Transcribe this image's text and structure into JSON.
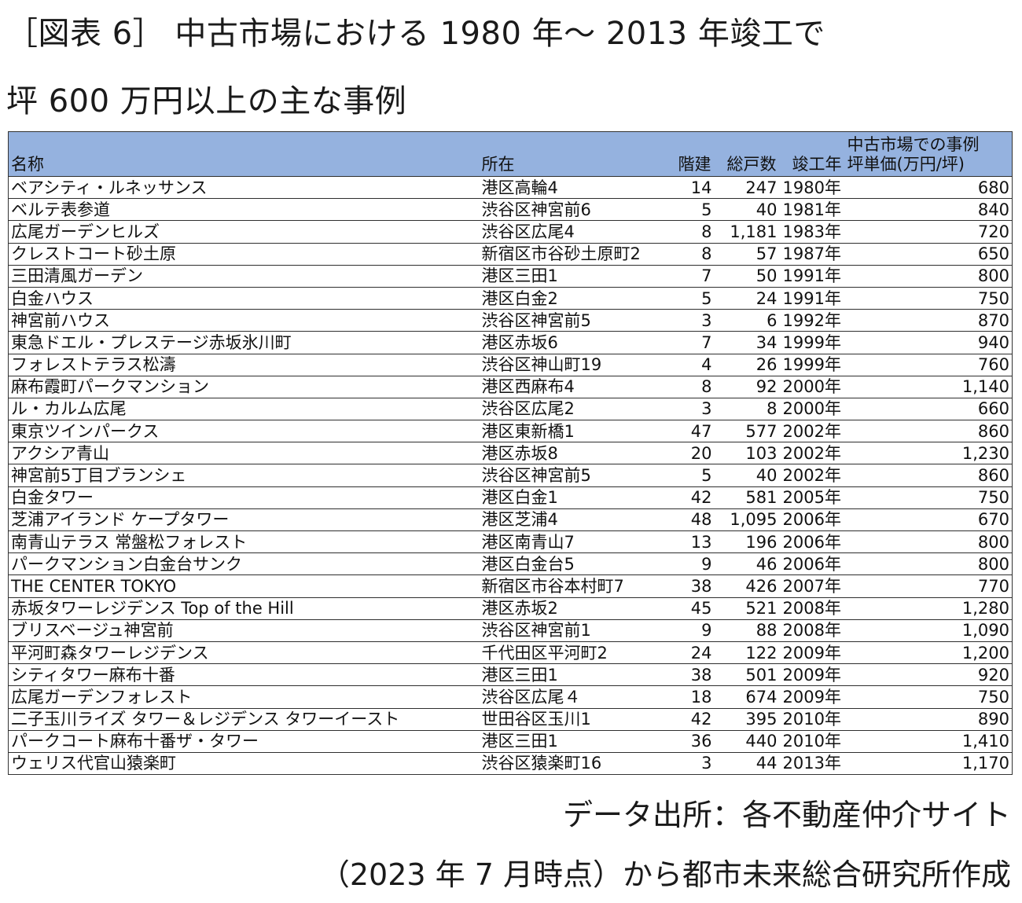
{
  "title_line1": "［図表 6］ 中古市場における 1980 年～ 2013 年竣工で",
  "title_line2": "坪 600 万円以上の主な事例",
  "source_line1": "データ出所：各不動産仲介サイト",
  "source_line2": "（2023 年 7 月時点）から都市未来総合研究所作成",
  "colors": {
    "header_bg": "#95b2df",
    "border": "#333333"
  },
  "chart_data": {
    "type": "table",
    "columns": {
      "name": "名称",
      "location": "所在",
      "floors": "階建",
      "units": "総戸数",
      "year": "竣工年",
      "price_line1": "中古市場での事例",
      "price_line2": "坪単価(万円/坪)"
    },
    "rows": [
      [
        "ベアシティ・ルネッサンス",
        "港区高輪4",
        "14",
        "247",
        "1980年",
        "680"
      ],
      [
        "ベルテ表参道",
        "渋谷区神宮前6",
        "5",
        "40",
        "1981年",
        "840"
      ],
      [
        "広尾ガーデンヒルズ",
        "渋谷区広尾4",
        "8",
        "1,181",
        "1983年",
        "720"
      ],
      [
        "クレストコート砂土原",
        "新宿区市谷砂土原町2",
        "8",
        "57",
        "1987年",
        "650"
      ],
      [
        "三田清風ガーデン",
        "港区三田1",
        "7",
        "50",
        "1991年",
        "800"
      ],
      [
        "白金ハウス",
        "港区白金2",
        "5",
        "24",
        "1991年",
        "750"
      ],
      [
        "神宮前ハウス",
        "渋谷区神宮前5",
        "3",
        "6",
        "1992年",
        "870"
      ],
      [
        "東急ドエル・プレステージ赤坂氷川町",
        "港区赤坂6",
        "7",
        "34",
        "1999年",
        "940"
      ],
      [
        "フォレストテラス松濤",
        "渋谷区神山町19",
        "4",
        "26",
        "1999年",
        "760"
      ],
      [
        "麻布霞町パークマンション",
        "港区西麻布4",
        "8",
        "92",
        "2000年",
        "1,140"
      ],
      [
        "ル・カルム広尾",
        "渋谷区広尾2",
        "3",
        "8",
        "2000年",
        "660"
      ],
      [
        "東京ツインパークス",
        "港区東新橋1",
        "47",
        "577",
        "2002年",
        "860"
      ],
      [
        "アクシア青山",
        "港区赤坂8",
        "20",
        "103",
        "2002年",
        "1,230"
      ],
      [
        "神宮前5丁目ブランシェ",
        "渋谷区神宮前5",
        "5",
        "40",
        "2002年",
        "860"
      ],
      [
        "白金タワー",
        "港区白金1",
        "42",
        "581",
        "2005年",
        "750"
      ],
      [
        "芝浦アイランド ケープタワー",
        "港区芝浦4",
        "48",
        "1,095",
        "2006年",
        "670"
      ],
      [
        "南青山テラス 常盤松フォレスト",
        "港区南青山7",
        "13",
        "196",
        "2006年",
        "800"
      ],
      [
        "パークマンション白金台サンク",
        "港区白金台5",
        "9",
        "46",
        "2006年",
        "800"
      ],
      [
        "THE CENTER TOKYO",
        "新宿区市谷本村町7",
        "38",
        "426",
        "2007年",
        "770"
      ],
      [
        "赤坂タワーレジデンス Top of the Hill",
        "港区赤坂2",
        "45",
        "521",
        "2008年",
        "1,280"
      ],
      [
        "ブリスベージュ神宮前",
        "渋谷区神宮前1",
        "9",
        "88",
        "2008年",
        "1,090"
      ],
      [
        "平河町森タワーレジデンス",
        "千代田区平河町2",
        "24",
        "122",
        "2009年",
        "1,200"
      ],
      [
        "シティタワー麻布十番",
        "港区三田1",
        "38",
        "501",
        "2009年",
        "920"
      ],
      [
        "広尾ガーデンフォレスト",
        "渋谷区広尾４",
        "18",
        "674",
        "2009年",
        "750"
      ],
      [
        "二子玉川ライズ タワー＆レジデンス タワーイースト",
        "世田谷区玉川1",
        "42",
        "395",
        "2010年",
        "890"
      ],
      [
        "パークコート麻布十番ザ・タワー",
        "港区三田1",
        "36",
        "440",
        "2010年",
        "1,410"
      ],
      [
        "ウェリス代官山猿楽町",
        "渋谷区猿楽町16",
        "3",
        "44",
        "2013年",
        "1,170"
      ]
    ]
  }
}
